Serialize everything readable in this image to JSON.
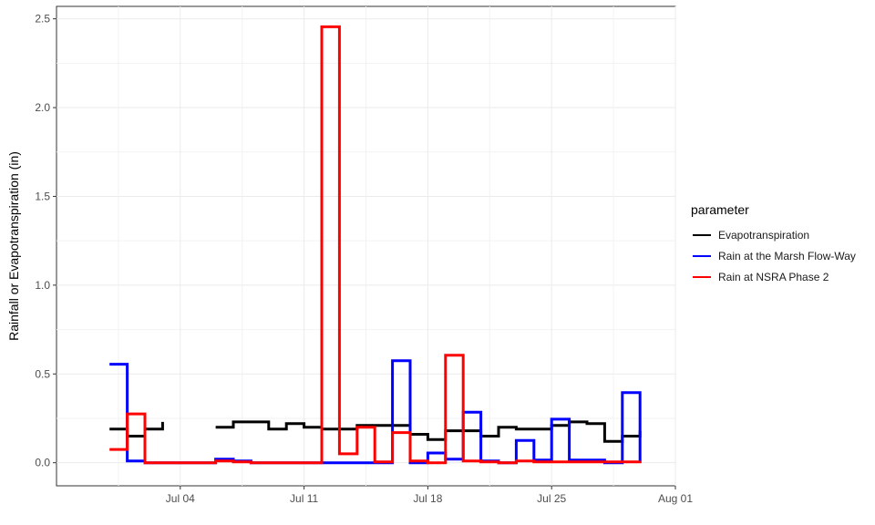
{
  "chart_data": {
    "type": "line",
    "title": "",
    "xlabel": "",
    "ylabel": "Rainfall or Evapotranspiration (in)",
    "x_ticks": [
      "Jul 04",
      "Jul 11",
      "Jul 18",
      "Jul 25",
      "Aug 01"
    ],
    "y_ticks": [
      "0.0",
      "0.5",
      "1.0",
      "1.5",
      "2.0",
      "2.5"
    ],
    "xlim": [
      "2023-06-27",
      "2023-08-01"
    ],
    "ylim": [
      -0.13,
      2.57
    ],
    "grid": true,
    "legend_position": "right",
    "legend_title": "parameter",
    "series": [
      {
        "name": "Evapotranspiration",
        "color": "#000000",
        "step": true,
        "points": [
          [
            "2023-06-30",
            0.19
          ],
          [
            "2023-07-01",
            0.15
          ],
          [
            "2023-07-02",
            0.19
          ],
          [
            "2023-07-03",
            0.23
          ],
          [
            "2023-07-05",
            null
          ],
          [
            "2023-07-06",
            0.2
          ],
          [
            "2023-07-07",
            0.23
          ],
          [
            "2023-07-09",
            0.19
          ],
          [
            "2023-07-10",
            0.22
          ],
          [
            "2023-07-11",
            0.2
          ],
          [
            "2023-07-12",
            0.19
          ],
          [
            "2023-07-14",
            0.21
          ],
          [
            "2023-07-16",
            0.21
          ],
          [
            "2023-07-17",
            0.16
          ],
          [
            "2023-07-18",
            0.13
          ],
          [
            "2023-07-19",
            0.18
          ],
          [
            "2023-07-21",
            0.15
          ],
          [
            "2023-07-22",
            0.2
          ],
          [
            "2023-07-23",
            0.19
          ],
          [
            "2023-07-25",
            0.21
          ],
          [
            "2023-07-26",
            0.23
          ],
          [
            "2023-07-27",
            0.22
          ],
          [
            "2023-07-28",
            0.12
          ],
          [
            "2023-07-29",
            0.15
          ],
          [
            "2023-07-30",
            0.18
          ]
        ]
      },
      {
        "name": "Rain at the Marsh Flow-Way",
        "color": "#0000ff",
        "step": true,
        "points": [
          [
            "2023-06-30",
            0.555
          ],
          [
            "2023-07-01",
            0.01
          ],
          [
            "2023-07-02",
            0.0
          ],
          [
            "2023-07-05",
            0.0
          ],
          [
            "2023-07-06",
            0.02
          ],
          [
            "2023-07-07",
            0.01
          ],
          [
            "2023-07-08",
            0.0
          ],
          [
            "2023-07-15",
            0.0
          ],
          [
            "2023-07-16",
            0.575
          ],
          [
            "2023-07-17",
            0.0
          ],
          [
            "2023-07-18",
            0.055
          ],
          [
            "2023-07-19",
            0.02
          ],
          [
            "2023-07-20",
            0.285
          ],
          [
            "2023-07-21",
            0.01
          ],
          [
            "2023-07-22",
            0.0
          ],
          [
            "2023-07-23",
            0.125
          ],
          [
            "2023-07-24",
            0.015
          ],
          [
            "2023-07-25",
            0.245
          ],
          [
            "2023-07-26",
            0.015
          ],
          [
            "2023-07-28",
            0.0
          ],
          [
            "2023-07-29",
            0.395
          ],
          [
            "2023-07-30",
            0.0
          ]
        ]
      },
      {
        "name": "Rain at NSRA Phase 2",
        "color": "#ff0000",
        "step": true,
        "points": [
          [
            "2023-06-30",
            0.075
          ],
          [
            "2023-07-01",
            0.275
          ],
          [
            "2023-07-02",
            0.0
          ],
          [
            "2023-07-05",
            0.0
          ],
          [
            "2023-07-06",
            0.01
          ],
          [
            "2023-07-07",
            0.005
          ],
          [
            "2023-07-08",
            0.0
          ],
          [
            "2023-07-12",
            2.455
          ],
          [
            "2023-07-13",
            0.05
          ],
          [
            "2023-07-14",
            0.2
          ],
          [
            "2023-07-15",
            0.005
          ],
          [
            "2023-07-16",
            0.17
          ],
          [
            "2023-07-17",
            0.01
          ],
          [
            "2023-07-18",
            0.0
          ],
          [
            "2023-07-19",
            0.605
          ],
          [
            "2023-07-20",
            0.01
          ],
          [
            "2023-07-21",
            0.005
          ],
          [
            "2023-07-22",
            0.0
          ],
          [
            "2023-07-23",
            0.01
          ],
          [
            "2023-07-24",
            0.005
          ],
          [
            "2023-07-30",
            0.01
          ]
        ]
      }
    ]
  }
}
